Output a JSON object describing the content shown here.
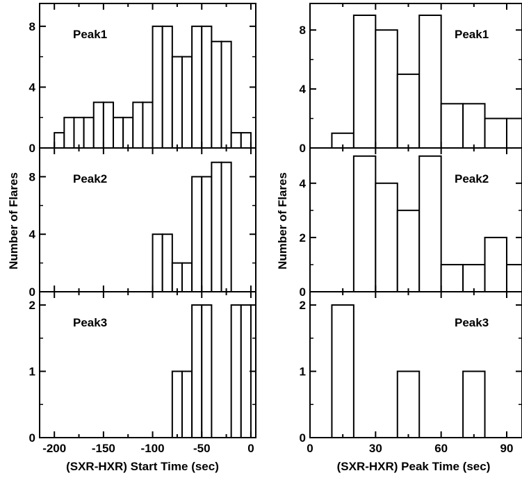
{
  "chart_data": [
    {
      "type": "bar",
      "group": "start",
      "panel_label": "Peak1",
      "bin_edges": [
        -210,
        -200,
        -190,
        -180,
        -170,
        -160,
        -150,
        -140,
        -130,
        -120,
        -110,
        -100,
        -90,
        -80,
        -70,
        -60,
        -50,
        -40,
        -30,
        -20,
        -10,
        0
      ],
      "values": [
        0,
        1,
        2,
        2,
        2,
        3,
        3,
        2,
        2,
        3,
        3,
        8,
        8,
        6,
        6,
        8,
        8,
        7,
        7,
        1,
        1
      ],
      "ylim": [
        0,
        9.5
      ],
      "yticks": [
        "0",
        "4",
        "8"
      ]
    },
    {
      "type": "bar",
      "group": "start",
      "panel_label": "Peak2",
      "bin_edges": [
        -210,
        -200,
        -190,
        -180,
        -170,
        -160,
        -150,
        -140,
        -130,
        -120,
        -110,
        -100,
        -90,
        -80,
        -70,
        -60,
        -50,
        -40,
        -30,
        -20,
        -10,
        0
      ],
      "values": [
        0,
        0,
        0,
        0,
        0,
        0,
        0,
        0,
        0,
        0,
        0,
        4,
        4,
        2,
        2,
        8,
        8,
        9,
        9,
        0,
        0
      ],
      "ylim": [
        0,
        10
      ],
      "yticks": [
        "0",
        "4",
        "8"
      ]
    },
    {
      "type": "bar",
      "group": "start",
      "panel_label": "Peak3",
      "bin_edges": [
        -210,
        -200,
        -190,
        -180,
        -170,
        -160,
        -150,
        -140,
        -130,
        -120,
        -110,
        -100,
        -90,
        -80,
        -70,
        -60,
        -50,
        -40,
        -30,
        -20,
        -10,
        0
      ],
      "values": [
        0,
        0,
        0,
        0,
        0,
        0,
        0,
        0,
        0,
        0,
        0,
        0,
        0,
        1,
        1,
        2,
        2,
        0,
        0,
        2,
        2
      ],
      "ylim": [
        0,
        2.2
      ],
      "yticks": [
        "0",
        "1",
        "2"
      ]
    },
    {
      "type": "bar",
      "group": "peak",
      "panel_label": "Peak1",
      "bin_edges": [
        0,
        10,
        20,
        30,
        40,
        50,
        60,
        70,
        80,
        90,
        100
      ],
      "values": [
        0,
        1,
        9,
        8,
        5,
        9,
        3,
        3,
        2,
        2
      ],
      "ylim": [
        0,
        9.8
      ],
      "yticks": [
        "0",
        "4",
        "8"
      ]
    },
    {
      "type": "bar",
      "group": "peak",
      "panel_label": "Peak2",
      "bin_edges": [
        0,
        10,
        20,
        30,
        40,
        50,
        60,
        70,
        80,
        90,
        100
      ],
      "values": [
        0,
        0,
        5,
        4,
        3,
        5,
        1,
        1,
        2,
        1
      ],
      "ylim": [
        0,
        5.3
      ],
      "yticks": [
        "0",
        "2",
        "4"
      ]
    },
    {
      "type": "bar",
      "group": "peak",
      "panel_label": "Peak3",
      "bin_edges": [
        0,
        10,
        20,
        30,
        40,
        50,
        60,
        70,
        80,
        90,
        100
      ],
      "values": [
        0,
        2,
        0,
        0,
        1,
        0,
        0,
        1,
        0,
        0
      ],
      "ylim": [
        0,
        2.2
      ],
      "yticks": [
        "0",
        "1",
        "2"
      ]
    }
  ],
  "left_axis": {
    "ylabel": "Number of Flares",
    "xlabel": "(SXR-HXR) Start Time (sec)",
    "xlim": [
      -215,
      5
    ],
    "xticks": [
      -200,
      -150,
      -100,
      -50,
      0
    ],
    "xtick_labels": [
      "-200",
      "-150",
      "-100",
      "-50",
      "0"
    ]
  },
  "right_axis": {
    "ylabel": "Number of Flares",
    "xlabel": "(SXR-HXR) Peak Time (sec)",
    "xlim": [
      0,
      97
    ],
    "xticks": [
      0,
      30,
      60,
      90
    ],
    "xtick_labels": [
      "0",
      "30",
      "60",
      "90"
    ]
  }
}
